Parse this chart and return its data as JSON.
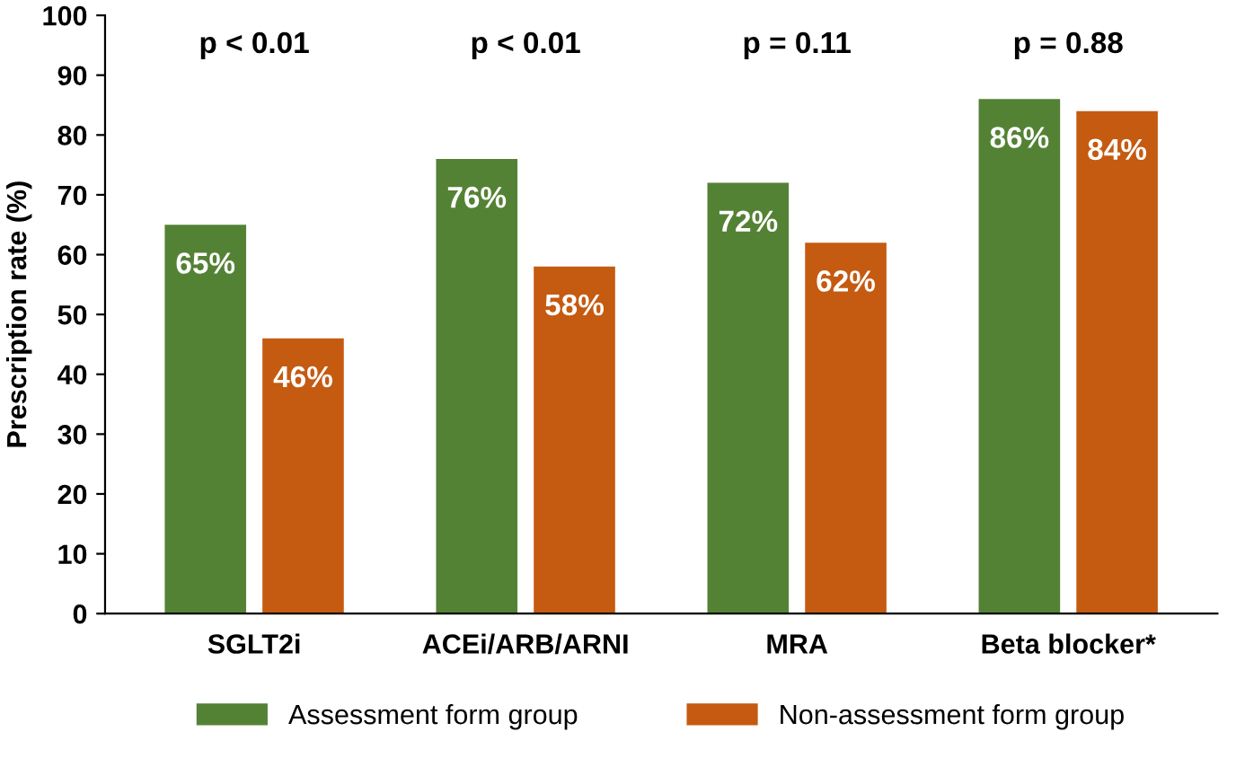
{
  "chart_data": {
    "type": "bar",
    "ylabel": "Prescription rate (%)",
    "categories": [
      "SGLT2i",
      "ACEi/ARB/ARNI",
      "MRA",
      "Beta blocker*"
    ],
    "series": [
      {
        "name": "Assessment form group",
        "color": "#548235",
        "values": [
          65,
          76,
          72,
          86
        ],
        "value_labels": [
          "65%",
          "76%",
          "72%",
          "86%"
        ]
      },
      {
        "name": "Non-assessment form group",
        "color": "#c55a11",
        "values": [
          46,
          58,
          62,
          84
        ],
        "value_labels": [
          "46%",
          "58%",
          "62%",
          "84%"
        ]
      }
    ],
    "annotations": [
      "p < 0.01",
      "p < 0.01",
      "p = 0.11",
      "p = 0.88"
    ],
    "ylim": [
      0,
      100
    ],
    "yticks": [
      0,
      10,
      20,
      30,
      40,
      50,
      60,
      70,
      80,
      90,
      100
    ],
    "grid": false,
    "legend": "bottom"
  }
}
